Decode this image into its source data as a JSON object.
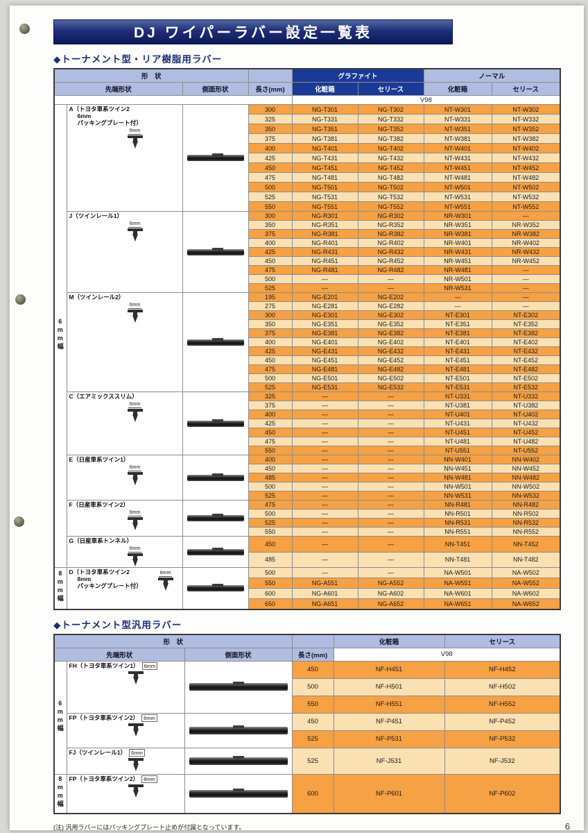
{
  "page": {
    "title": "DJ ワイパーラバー設定一覧表",
    "footnote": "(注) 汎用ラバーにはパッキングプレート止めが付属となっています。",
    "page_number": "6"
  },
  "rear_table": {
    "section_title": "◆トーナメント型・リア樹脂用ラバー",
    "headers": {
      "shape": "形　状",
      "tip": "先端形状",
      "side": "側面形状",
      "length": "長さ(mm)",
      "graphite": "グラファイト",
      "normal": "ノーマル",
      "box": "化粧箱",
      "series": "セリース",
      "v98": "V98"
    },
    "bands": [
      {
        "label": "6mm幅",
        "group_ids": [
          "A",
          "J",
          "M",
          "C",
          "E",
          "F",
          "G"
        ]
      },
      {
        "label": "8mm幅",
        "group_ids": [
          "D"
        ]
      }
    ],
    "groups": [
      {
        "id": "A",
        "label_lines": [
          "A（トヨタ車系ツイン2",
          "6mm",
          "パッキングプレート付）"
        ],
        "dim": "6mm",
        "first_shade": "dark",
        "rows": [
          [
            "300",
            "NG-T301",
            "NG-T302",
            "NT-W301",
            "NT-W302"
          ],
          [
            "325",
            "NG-T331",
            "NG-T332",
            "NT-W331",
            "NT-W332"
          ],
          [
            "350",
            "NG-T351",
            "NG-T352",
            "NT-W351",
            "NT-W352"
          ],
          [
            "375",
            "NG-T381",
            "NG-T382",
            "NT-W381",
            "NT-W382"
          ],
          [
            "400",
            "NG-T401",
            "NG-T402",
            "NT-W401",
            "NT-W402"
          ],
          [
            "425",
            "NG-T431",
            "NG-T432",
            "NT-W431",
            "NT-W432"
          ],
          [
            "450",
            "NG-T451",
            "NG-T452",
            "NT-W451",
            "NT-W452"
          ],
          [
            "475",
            "NG-T481",
            "NG-T482",
            "NT-W481",
            "NT-W482"
          ],
          [
            "500",
            "NG-T501",
            "NG-T502",
            "NT-W501",
            "NT-W502"
          ],
          [
            "525",
            "NG-T531",
            "NG-T532",
            "NT-W531",
            "NT-W532"
          ],
          [
            "550",
            "NG-T551",
            "NG-T552",
            "NT-W551",
            "NT-W552"
          ]
        ]
      },
      {
        "id": "J",
        "label": "J（ツインレール1）",
        "dim": "6mm",
        "first_shade": "dark",
        "rows": [
          [
            "300",
            "NG-R301",
            "NG-R302",
            "NR-W301",
            "—"
          ],
          [
            "350",
            "NG-R351",
            "NG-R352",
            "NR-W351",
            "NR-W352"
          ],
          [
            "375",
            "NG-R381",
            "NG-R382",
            "NR-W381",
            "NR-W382"
          ],
          [
            "400",
            "NG-R401",
            "NG-R402",
            "NR-W401",
            "NR-W402"
          ],
          [
            "425",
            "NG-R431",
            "NG-R432",
            "NR-W431",
            "NR-W432"
          ],
          [
            "450",
            "NG-R451",
            "NG-R452",
            "NR-W451",
            "NR-W452"
          ],
          [
            "475",
            "NG-R481",
            "NG-R482",
            "NR-W481",
            "—"
          ],
          [
            "500",
            "—",
            "—",
            "NR-W501",
            "—"
          ],
          [
            "525",
            "—",
            "—",
            "NR-W531",
            "—"
          ]
        ]
      },
      {
        "id": "M",
        "label": "M（ツインレール2）",
        "dim": "6mm",
        "first_shade": "dark",
        "rows": [
          [
            "195",
            "NG-E201",
            "NG-E202",
            "—",
            "—"
          ],
          [
            "275",
            "NG-E281",
            "NG-E282",
            "—",
            "—"
          ],
          [
            "300",
            "NG-E301",
            "NG-E302",
            "NT-E301",
            "NT-E302"
          ],
          [
            "350",
            "NG-E351",
            "NG-E352",
            "NT-E351",
            "NT-E352"
          ],
          [
            "375",
            "NG-E381",
            "NG-E382",
            "NT-E381",
            "NT-E382"
          ],
          [
            "400",
            "NG-E401",
            "NG-E402",
            "NT-E401",
            "NT-E402"
          ],
          [
            "425",
            "NG-E431",
            "NG-E432",
            "NT-E431",
            "NT-E432"
          ],
          [
            "450",
            "NG-E451",
            "NG-E452",
            "NT-E451",
            "NT-E452"
          ],
          [
            "475",
            "NG-E481",
            "NG-E482",
            "NT-E481",
            "NT-E482"
          ],
          [
            "500",
            "NG-E501",
            "NG-E502",
            "NT-E501",
            "NT-E502"
          ],
          [
            "525",
            "NG-E531",
            "NG-E532",
            "NT-E531",
            "NT-E532"
          ]
        ]
      },
      {
        "id": "C",
        "label": "C（エアミックススリム）",
        "dim": "6mm",
        "first_shade": "dark",
        "rows": [
          [
            "325",
            "—",
            "—",
            "NT-U331",
            "NT-U332"
          ],
          [
            "375",
            "—",
            "—",
            "NT-U381",
            "NT-U382"
          ],
          [
            "400",
            "—",
            "—",
            "NT-U401",
            "NT-U402"
          ],
          [
            "425",
            "—",
            "—",
            "NT-U431",
            "NT-U432"
          ],
          [
            "450",
            "—",
            "—",
            "NT-U451",
            "NT-U452"
          ],
          [
            "475",
            "—",
            "—",
            "NT-U481",
            "NT-U482"
          ],
          [
            "550",
            "—",
            "—",
            "NT-U551",
            "NT-U552"
          ]
        ]
      },
      {
        "id": "E",
        "label": "E（日産車系ツイン1）",
        "dim": "6mm",
        "first_shade": "dark",
        "rows": [
          [
            "400",
            "—",
            "—",
            "NN-W401",
            "NN-W402"
          ],
          [
            "450",
            "—",
            "—",
            "NN-W451",
            "NN-W452"
          ],
          [
            "485",
            "—",
            "—",
            "NN-W481",
            "NN-W482"
          ],
          [
            "500",
            "—",
            "—",
            "NN-W501",
            "NN-W502"
          ],
          [
            "525",
            "—",
            "—",
            "NN-W531",
            "NN-W532"
          ]
        ]
      },
      {
        "id": "F",
        "label": "F（日産車系ツイン2）",
        "dim": "6mm",
        "first_shade": "dark",
        "rows": [
          [
            "475",
            "—",
            "—",
            "NN-R481",
            "NN-R482"
          ],
          [
            "500",
            "—",
            "—",
            "NN-R501",
            "NN-R502"
          ],
          [
            "525",
            "—",
            "—",
            "NN-R531",
            "NN-R532"
          ],
          [
            "550",
            "—",
            "—",
            "NN-R551",
            "NN-R552"
          ]
        ]
      },
      {
        "id": "G",
        "label": "G（日産車系トンネル）",
        "dim": "6mm",
        "first_shade": "dark",
        "rows": [
          [
            "450",
            "—",
            "—",
            "NN-T451",
            "NN-T452"
          ],
          [
            "485",
            "—",
            "—",
            "NN-T481",
            "NN-T482"
          ]
        ]
      },
      {
        "id": "D",
        "label_lines": [
          "D（トヨタ車系ツイン2",
          "8mm",
          "パッキングプレート付）"
        ],
        "dim": "8mm",
        "first_shade": "light",
        "rows": [
          [
            "500",
            "—",
            "—",
            "NA-W501",
            "NA-W502"
          ],
          [
            "550",
            "NG-A551",
            "NG-A552",
            "NA-W551",
            "NA-W552"
          ],
          [
            "600",
            "NG-A601",
            "NG-A602",
            "NA-W601",
            "NA-W602"
          ],
          [
            "650",
            "NG-A651",
            "NG-A652",
            "NA-W651",
            "NA-W652"
          ]
        ]
      }
    ]
  },
  "general_table": {
    "section_title": "◆トーナメント型汎用ラバー",
    "headers": {
      "shape": "形　状",
      "tip": "先端形状",
      "side": "側面形状",
      "length": "長さ(mm)",
      "box": "化粧箱",
      "series": "セリース",
      "v98": "V98"
    },
    "bands": [
      {
        "label": "6mm幅",
        "group_ids": [
          "FH",
          "FP6",
          "FJ"
        ]
      },
      {
        "label": "8mm幅",
        "group_ids": [
          "FP8"
        ]
      }
    ],
    "groups": [
      {
        "id": "FH",
        "label": "FH（トヨタ車系ツイン1）",
        "dim": "6mm",
        "first_shade": "dark",
        "rows": [
          [
            "450",
            "NF-H451",
            "NF-H452"
          ],
          [
            "500",
            "NF-H501",
            "NF-H502"
          ],
          [
            "550",
            "NF-H551",
            "NF-H552"
          ]
        ]
      },
      {
        "id": "FP6",
        "label": "FP（トヨタ車系ツイン2）",
        "dim": "6mm",
        "first_shade": "light",
        "rows": [
          [
            "450",
            "NF-P451",
            "NF-P452"
          ],
          [
            "525",
            "NF-P531",
            "NF-P532"
          ]
        ]
      },
      {
        "id": "FJ",
        "label": "FJ（ツインレール1）",
        "dim": "6mm",
        "first_shade": "light",
        "rows": [
          [
            "525",
            "NF-J531",
            "NF-J532"
          ]
        ]
      },
      {
        "id": "FP8",
        "label": "FP（トヨタ車系ツイン2）",
        "dim": "8mm",
        "first_shade": "dark",
        "rows": [
          [
            "600",
            "NF-P601",
            "NF-P602"
          ]
        ]
      }
    ]
  }
}
